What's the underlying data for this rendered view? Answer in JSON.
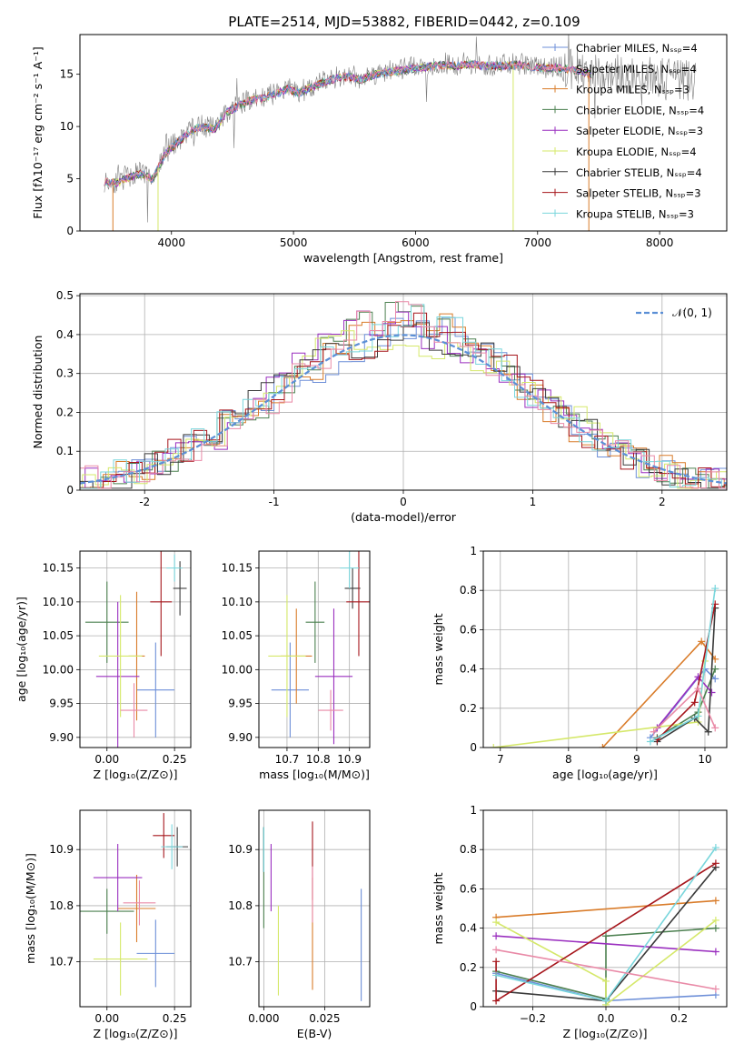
{
  "figure_title": "PLATE=2514, MJD=53882, FIBERID=0442, z=0.109",
  "legend_colors": [
    "#6d8fd8",
    "#d97c2a",
    "#4c8050",
    "#9a2fbf",
    "#d5e86a",
    "#3a3a3a",
    "#a6161c",
    "#79d6dc",
    "#e98aa7"
  ],
  "chart_data": [
    {
      "id": "spectrum",
      "type": "line",
      "title": "PLATE=2514, MJD=53882, FIBERID=0442, z=0.109",
      "xlabel": "wavelength [Angstrom, rest frame]",
      "ylabel": "Flux [fλ10⁻¹⁷ erg cm⁻² s⁻¹ A⁻¹]",
      "xlim": [
        3250,
        8550
      ],
      "ylim": [
        0,
        18.8
      ],
      "xticks": [
        4000,
        5000,
        6000,
        7000,
        8000
      ],
      "yticks": [
        0,
        5,
        10,
        15
      ],
      "grid": false,
      "legend_position": "right",
      "legend": [
        "Chabrier MILES, Nₛₛₚ=4",
        "Salpeter MILES, Nₛₛₚ=4",
        "Kroupa MILES, Nₛₛₚ=3",
        "Chabrier ELODIE, Nₛₛₚ=4",
        "Salpeter ELODIE, Nₛₛₚ=3",
        "Kroupa ELODIE, Nₛₛₚ=4",
        "Chabrier STELIB, Nₛₛₚ=4",
        "Salpeter STELIB, Nₛₛₚ=3",
        "Kroupa STELIB, Nₛₛₚ=3"
      ],
      "legend_color_index": [
        0,
        8,
        1,
        2,
        3,
        4,
        5,
        6,
        7
      ],
      "data_continuum": {
        "x": [
          3450,
          3550,
          3650,
          3750,
          3850,
          3950,
          4050,
          4150,
          4250,
          4350,
          4450,
          4550,
          4650,
          4750,
          4850,
          4950,
          5050,
          5150,
          5250,
          5350,
          5450,
          5550,
          5650,
          5750,
          5850,
          5950,
          6050,
          6150,
          6250,
          6350,
          6450,
          6550,
          6650,
          6750,
          6850,
          6950,
          7050,
          7150,
          7250,
          7350,
          7450,
          7550,
          7650,
          7750,
          7850,
          7950,
          8050,
          8150,
          8250,
          8300
        ],
        "y": [
          4.8,
          4.7,
          5.2,
          5.6,
          5.1,
          7.5,
          8.6,
          9.6,
          10.1,
          9.8,
          11.4,
          12.1,
          12.6,
          12.8,
          13.2,
          13.7,
          13.3,
          13.9,
          14.3,
          14.7,
          14.9,
          14.6,
          15.0,
          15.3,
          15.4,
          15.6,
          15.7,
          15.9,
          16.0,
          15.9,
          16.1,
          15.9,
          15.9,
          15.9,
          16.0,
          15.8,
          15.7,
          15.7,
          15.6,
          15.4,
          15.0,
          15.3,
          15.1,
          15.0,
          14.8,
          14.7,
          14.6,
          14.5,
          14.4,
          14.4
        ]
      },
      "model_xrange": [
        3450,
        7450
      ],
      "noise_amplitude": 1.1,
      "model_glitches": [
        {
          "x": 3520,
          "y_bottom": 0.0,
          "color_index": 1
        },
        {
          "x": 3890,
          "y_bottom": 0.0,
          "color_index": 4
        },
        {
          "x": 6800,
          "y_bottom": 0.0,
          "color_index": 4
        },
        {
          "x": 7420,
          "y_bottom": 0.0,
          "color_index": 1
        }
      ]
    },
    {
      "id": "residual-histogram",
      "type": "histogram",
      "xlabel": "(data-model)/error",
      "ylabel": "Normed distribution",
      "xlim": [
        -2.5,
        2.5
      ],
      "ylim": [
        0,
        0.505
      ],
      "xticks": [
        -2,
        -1,
        0,
        1,
        2
      ],
      "yticks": [
        0.0,
        0.1,
        0.2,
        0.3,
        0.4,
        0.5
      ],
      "grid": true,
      "bin_width": 0.1,
      "gaussian_legend": "𝒩(0, 1)",
      "gaussian_color": "#5b8fd6",
      "jitter": 0.04
    },
    {
      "id": "age-vs-Z",
      "type": "errorbar",
      "xlabel": "Z [log₁₀(Z/Z⊙)]",
      "ylabel": "age  [log₁₀(age/yr)]",
      "xlim": [
        -0.1,
        0.31
      ],
      "ylim": [
        9.885,
        10.175
      ],
      "xticks": [
        0.0,
        0.25
      ],
      "xtick_labels": [
        "0.00",
        "0.25"
      ],
      "yticks": [
        9.9,
        9.95,
        10.0,
        10.05,
        10.1,
        10.15
      ],
      "ytick_labels": [
        "9.90",
        "9.95",
        "10.00",
        "10.05",
        "10.10",
        "10.15"
      ],
      "grid": true,
      "points": [
        {
          "x": 0.18,
          "y": 9.97,
          "xerr": 0.07,
          "yerr": 0.07,
          "color_index": 0
        },
        {
          "x": 0.11,
          "y": 10.02,
          "xerr": 0.03,
          "yerr": 0.095,
          "color_index": 1
        },
        {
          "x": 0.0,
          "y": 10.07,
          "xerr": 0.08,
          "yerr": 0.06,
          "color_index": 2
        },
        {
          "x": 0.04,
          "y": 9.99,
          "xerr": 0.08,
          "yerr": 0.11,
          "color_index": 3
        },
        {
          "x": 0.05,
          "y": 10.02,
          "xerr": 0.08,
          "yerr": 0.09,
          "color_index": 4
        },
        {
          "x": 0.27,
          "y": 10.12,
          "xerr": 0.025,
          "yerr": 0.04,
          "color_index": 5
        },
        {
          "x": 0.2,
          "y": 10.1,
          "xerr": 0.04,
          "yerr": 0.08,
          "color_index": 6
        },
        {
          "x": 0.25,
          "y": 10.15,
          "xerr": 0.03,
          "yerr": 0.02,
          "color_index": 7
        },
        {
          "x": 0.1,
          "y": 9.94,
          "xerr": 0.05,
          "yerr": 0.04,
          "color_index": 8
        }
      ]
    },
    {
      "id": "age-vs-mass",
      "type": "errorbar",
      "xlabel": "mass [log₁₀(M/M⊙)]",
      "ylabel": "",
      "xlim": [
        10.61,
        10.965
      ],
      "ylim": [
        9.885,
        10.175
      ],
      "xticks": [
        10.7,
        10.8,
        10.9
      ],
      "xtick_labels": [
        "10.7",
        "10.8",
        "10.9"
      ],
      "yticks": [
        9.9,
        9.95,
        10.0,
        10.05,
        10.1,
        10.15
      ],
      "ytick_labels": [
        "9.90",
        "9.95",
        "10.00",
        "10.05",
        "10.10",
        "10.15"
      ],
      "grid": true,
      "points": [
        {
          "x": 10.71,
          "y": 9.97,
          "xerr": 0.06,
          "yerr": 0.07,
          "color_index": 0
        },
        {
          "x": 10.73,
          "y": 10.02,
          "xerr": 0.05,
          "yerr": 0.07,
          "color_index": 1
        },
        {
          "x": 10.79,
          "y": 10.07,
          "xerr": 0.03,
          "yerr": 0.06,
          "color_index": 2
        },
        {
          "x": 10.85,
          "y": 9.99,
          "xerr": 0.06,
          "yerr": 0.1,
          "color_index": 3
        },
        {
          "x": 10.7,
          "y": 10.02,
          "xerr": 0.06,
          "yerr": 0.09,
          "color_index": 4
        },
        {
          "x": 10.91,
          "y": 10.12,
          "xerr": 0.025,
          "yerr": 0.03,
          "color_index": 5
        },
        {
          "x": 10.93,
          "y": 10.1,
          "xerr": 0.04,
          "yerr": 0.08,
          "color_index": 6
        },
        {
          "x": 10.9,
          "y": 10.15,
          "xerr": 0.03,
          "yerr": 0.03,
          "color_index": 7
        },
        {
          "x": 10.84,
          "y": 9.94,
          "xerr": 0.04,
          "yerr": 0.03,
          "color_index": 8
        }
      ]
    },
    {
      "id": "massweight-vs-age",
      "type": "line",
      "xlabel": "age  [log₁₀(age/yr)]",
      "ylabel": "mass weight",
      "xlim": [
        6.75,
        10.32
      ],
      "ylim": [
        0,
        1.0
      ],
      "xticks": [
        7,
        8,
        9,
        10
      ],
      "yticks": [
        0.0,
        0.2,
        0.4,
        0.6,
        0.8,
        1.0
      ],
      "grid": true,
      "series": [
        {
          "color_index": 0,
          "x": [
            9.2,
            10.0,
            10.15
          ],
          "y": [
            0.05,
            0.4,
            0.35
          ]
        },
        {
          "color_index": 1,
          "x": [
            8.5,
            9.95,
            10.15
          ],
          "y": [
            0.0,
            0.54,
            0.45
          ]
        },
        {
          "color_index": 2,
          "x": [
            9.3,
            9.9,
            10.15
          ],
          "y": [
            0.05,
            0.18,
            0.4
          ]
        },
        {
          "color_index": 3,
          "x": [
            9.3,
            9.9,
            10.1
          ],
          "y": [
            0.1,
            0.36,
            0.28
          ]
        },
        {
          "color_index": 4,
          "x": [
            6.9,
            9.9,
            10.0
          ],
          "y": [
            0.0,
            0.13,
            0.44
          ]
        },
        {
          "color_index": 5,
          "x": [
            9.3,
            9.85,
            10.05,
            10.15
          ],
          "y": [
            0.03,
            0.15,
            0.08,
            0.71
          ]
        },
        {
          "color_index": 6,
          "x": [
            9.3,
            9.85,
            10.15
          ],
          "y": [
            0.04,
            0.23,
            0.73
          ]
        },
        {
          "color_index": 7,
          "x": [
            9.2,
            9.9,
            10.15
          ],
          "y": [
            0.03,
            0.16,
            0.81
          ]
        },
        {
          "color_index": 8,
          "x": [
            9.25,
            9.9,
            10.15
          ],
          "y": [
            0.08,
            0.3,
            0.1
          ]
        }
      ]
    },
    {
      "id": "mass-vs-Z",
      "type": "errorbar",
      "xlabel": "Z [log₁₀(Z/Z⊙)]",
      "ylabel": "mass [log₁₀(M/M⊙)]",
      "xlim": [
        -0.1,
        0.31
      ],
      "ylim": [
        10.62,
        10.97
      ],
      "xticks": [
        0.0,
        0.25
      ],
      "xtick_labels": [
        "0.00",
        "0.25"
      ],
      "yticks": [
        10.7,
        10.8,
        10.9
      ],
      "ytick_labels": [
        "10.7",
        "10.8",
        "10.9"
      ],
      "grid": true,
      "points": [
        {
          "x": 0.18,
          "y": 10.715,
          "xerr": 0.07,
          "yerr": 0.06,
          "color_index": 0
        },
        {
          "x": 0.11,
          "y": 10.795,
          "xerr": 0.07,
          "yerr": 0.06,
          "color_index": 1
        },
        {
          "x": 0.0,
          "y": 10.79,
          "xerr": 0.1,
          "yerr": 0.04,
          "color_index": 2
        },
        {
          "x": 0.04,
          "y": 10.85,
          "xerr": 0.09,
          "yerr": 0.06,
          "color_index": 3
        },
        {
          "x": 0.05,
          "y": 10.705,
          "xerr": 0.1,
          "yerr": 0.065,
          "color_index": 4
        },
        {
          "x": 0.26,
          "y": 10.905,
          "xerr": 0.04,
          "yerr": 0.035,
          "color_index": 5
        },
        {
          "x": 0.21,
          "y": 10.925,
          "xerr": 0.04,
          "yerr": 0.04,
          "color_index": 6
        },
        {
          "x": 0.24,
          "y": 10.905,
          "xerr": 0.04,
          "yerr": 0.04,
          "color_index": 7
        },
        {
          "x": 0.12,
          "y": 10.805,
          "xerr": 0.06,
          "yerr": 0.04,
          "color_index": 8
        }
      ]
    },
    {
      "id": "mass-vs-EBV",
      "type": "errorbar",
      "xlabel": "E(B-V)",
      "ylabel": "",
      "xlim": [
        -0.002,
        0.0435
      ],
      "ylim": [
        10.62,
        10.97
      ],
      "xticks": [
        0.0,
        0.025
      ],
      "xtick_labels": [
        "0.000",
        "0.025"
      ],
      "yticks": [
        10.7,
        10.8,
        10.9
      ],
      "ytick_labels": [
        "10.7",
        "10.8",
        "10.9"
      ],
      "grid": true,
      "points": [
        {
          "x": 0.04,
          "y": 10.73,
          "xerr": 0,
          "yerr": 0.1,
          "color_index": 0
        },
        {
          "x": 0.02,
          "y": 10.75,
          "xerr": 0,
          "yerr": 0.1,
          "color_index": 1
        },
        {
          "x": 0.0,
          "y": 10.85,
          "xerr": 0,
          "yerr": 0.09,
          "color_index": 2
        },
        {
          "x": 0.003,
          "y": 10.85,
          "xerr": 0,
          "yerr": 0.06,
          "color_index": 3
        },
        {
          "x": 0.006,
          "y": 10.72,
          "xerr": 0,
          "yerr": 0.08,
          "color_index": 4
        },
        {
          "x": 0.0,
          "y": 10.9,
          "xerr": 0,
          "yerr": 0.04,
          "color_index": 5
        },
        {
          "x": 0.02,
          "y": 10.88,
          "xerr": 0,
          "yerr": 0.07,
          "color_index": 6
        },
        {
          "x": 0.0,
          "y": 10.9,
          "xerr": 0,
          "yerr": 0.04,
          "color_index": 7
        },
        {
          "x": 0.02,
          "y": 10.82,
          "xerr": 0,
          "yerr": 0.05,
          "color_index": 8
        }
      ]
    },
    {
      "id": "massweight-vs-Z",
      "type": "line",
      "xlabel": "Z [log₁₀(Z/Z⊙)]",
      "ylabel": "mass weight",
      "xlim": [
        -0.335,
        0.33
      ],
      "ylim": [
        0,
        1.0
      ],
      "xticks": [
        -0.2,
        0.0,
        0.2
      ],
      "xtick_labels": [
        "−0.2",
        "0.0",
        "0.2"
      ],
      "yticks": [
        0.0,
        0.2,
        0.4,
        0.6,
        0.8,
        1.0
      ],
      "grid": true,
      "series": [
        {
          "color_index": 0,
          "x": [
            -0.3,
            0.0,
            0.3
          ],
          "y": [
            0.17,
            0.03,
            0.06
          ]
        },
        {
          "color_index": 1,
          "x": [
            -0.3,
            0.3
          ],
          "y": [
            0.455,
            0.54
          ]
        },
        {
          "color_index": 2,
          "x": [
            -0.3,
            0.0,
            0.0,
            0.3
          ],
          "y": [
            0.18,
            0.04,
            0.36,
            0.4
          ]
        },
        {
          "color_index": 3,
          "x": [
            -0.3,
            0.3
          ],
          "y": [
            0.36,
            0.28
          ]
        },
        {
          "color_index": 4,
          "x": [
            -0.3,
            0.0,
            0.0,
            0.3
          ],
          "y": [
            0.43,
            0.13,
            0.01,
            0.44
          ]
        },
        {
          "color_index": 5,
          "x": [
            -0.3,
            0.0,
            0.3
          ],
          "y": [
            0.08,
            0.03,
            0.71
          ]
        },
        {
          "color_index": 6,
          "x": [
            -0.3,
            -0.3,
            0.3
          ],
          "y": [
            0.23,
            0.03,
            0.73
          ]
        },
        {
          "color_index": 7,
          "x": [
            -0.3,
            0.0,
            0.3
          ],
          "y": [
            0.16,
            0.03,
            0.81
          ]
        },
        {
          "color_index": 8,
          "x": [
            -0.3,
            0.3
          ],
          "y": [
            0.29,
            0.09
          ]
        }
      ]
    }
  ]
}
